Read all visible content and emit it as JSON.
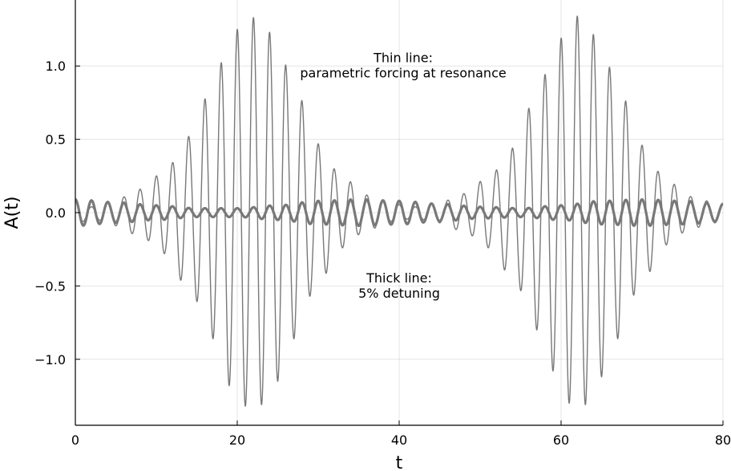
{
  "chart_data": {
    "type": "line",
    "title": "",
    "xlabel": "t",
    "ylabel": "A(t)",
    "xlim": [
      0,
      80
    ],
    "ylim": [
      -1.45,
      1.45
    ],
    "xticks": [
      0,
      20,
      40,
      60,
      80
    ],
    "xtick_labels": [
      "0",
      "20",
      "40",
      "60",
      "80"
    ],
    "yticks": [
      -1.0,
      -0.5,
      0.0,
      0.5,
      1.0
    ],
    "ytick_labels": [
      "−1.0",
      "−0.5",
      "0.0",
      "0.5",
      "1.0"
    ],
    "grid": true,
    "legend": "none",
    "line_color": "#787878",
    "series": [
      {
        "style": "thin",
        "function": "A(t) = a(t)·cos(ωt), carrier ω ≈ π, envelope peaks ≈ 1.33 at t ≈ 22 and t ≈ 62, minima ≈ 0.04 at t ≈ 2 and t ≈ 42",
        "carrier_period": 2.0,
        "envelope": {
          "t": [
            0,
            2,
            5,
            8,
            11,
            14,
            17,
            19,
            21,
            22,
            23,
            25,
            27,
            30,
            33,
            36,
            39,
            42,
            45,
            48,
            51,
            54,
            57,
            59,
            61,
            62,
            63,
            65,
            67,
            70,
            73,
            76,
            79,
            80
          ],
          "a": [
            0.08,
            0.04,
            0.09,
            0.16,
            0.28,
            0.52,
            0.86,
            1.18,
            1.32,
            1.33,
            1.31,
            1.15,
            0.86,
            0.47,
            0.24,
            0.12,
            0.06,
            0.04,
            0.07,
            0.13,
            0.24,
            0.44,
            0.8,
            1.08,
            1.3,
            1.34,
            1.31,
            1.12,
            0.86,
            0.46,
            0.22,
            0.11,
            0.07,
            0.06
          ]
        }
      },
      {
        "style": "thick",
        "function": "A(t) = a(t)·cos(ωt), carrier ω ≈ π, envelope oscillates 0.03–0.09",
        "carrier_period": 2.0,
        "envelope": {
          "t": [
            0,
            5,
            10,
            15,
            20,
            25,
            30,
            35,
            40,
            45,
            50,
            55,
            60,
            65,
            70,
            75,
            80
          ],
          "a": [
            0.09,
            0.07,
            0.05,
            0.03,
            0.03,
            0.05,
            0.08,
            0.09,
            0.08,
            0.06,
            0.04,
            0.03,
            0.05,
            0.08,
            0.09,
            0.08,
            0.06
          ]
        }
      }
    ],
    "annotations": [
      {
        "lines": [
          "Thin line:",
          "parametric forcing at resonance"
        ],
        "x": 40.5,
        "y": 1.0
      },
      {
        "lines": [
          "Thick line:",
          "5% detuning"
        ],
        "x": 40.0,
        "y": -0.5
      }
    ]
  }
}
